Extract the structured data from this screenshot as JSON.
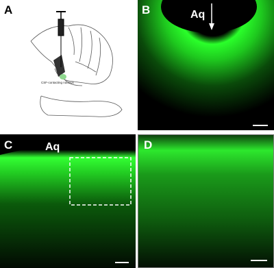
{
  "panels": [
    {
      "label": "A",
      "annotation": "CSF-contacting nucleus"
    },
    {
      "label": "B",
      "annotation": "Aq"
    },
    {
      "label": "C",
      "annotation": "Aq"
    },
    {
      "label": "D"
    }
  ]
}
